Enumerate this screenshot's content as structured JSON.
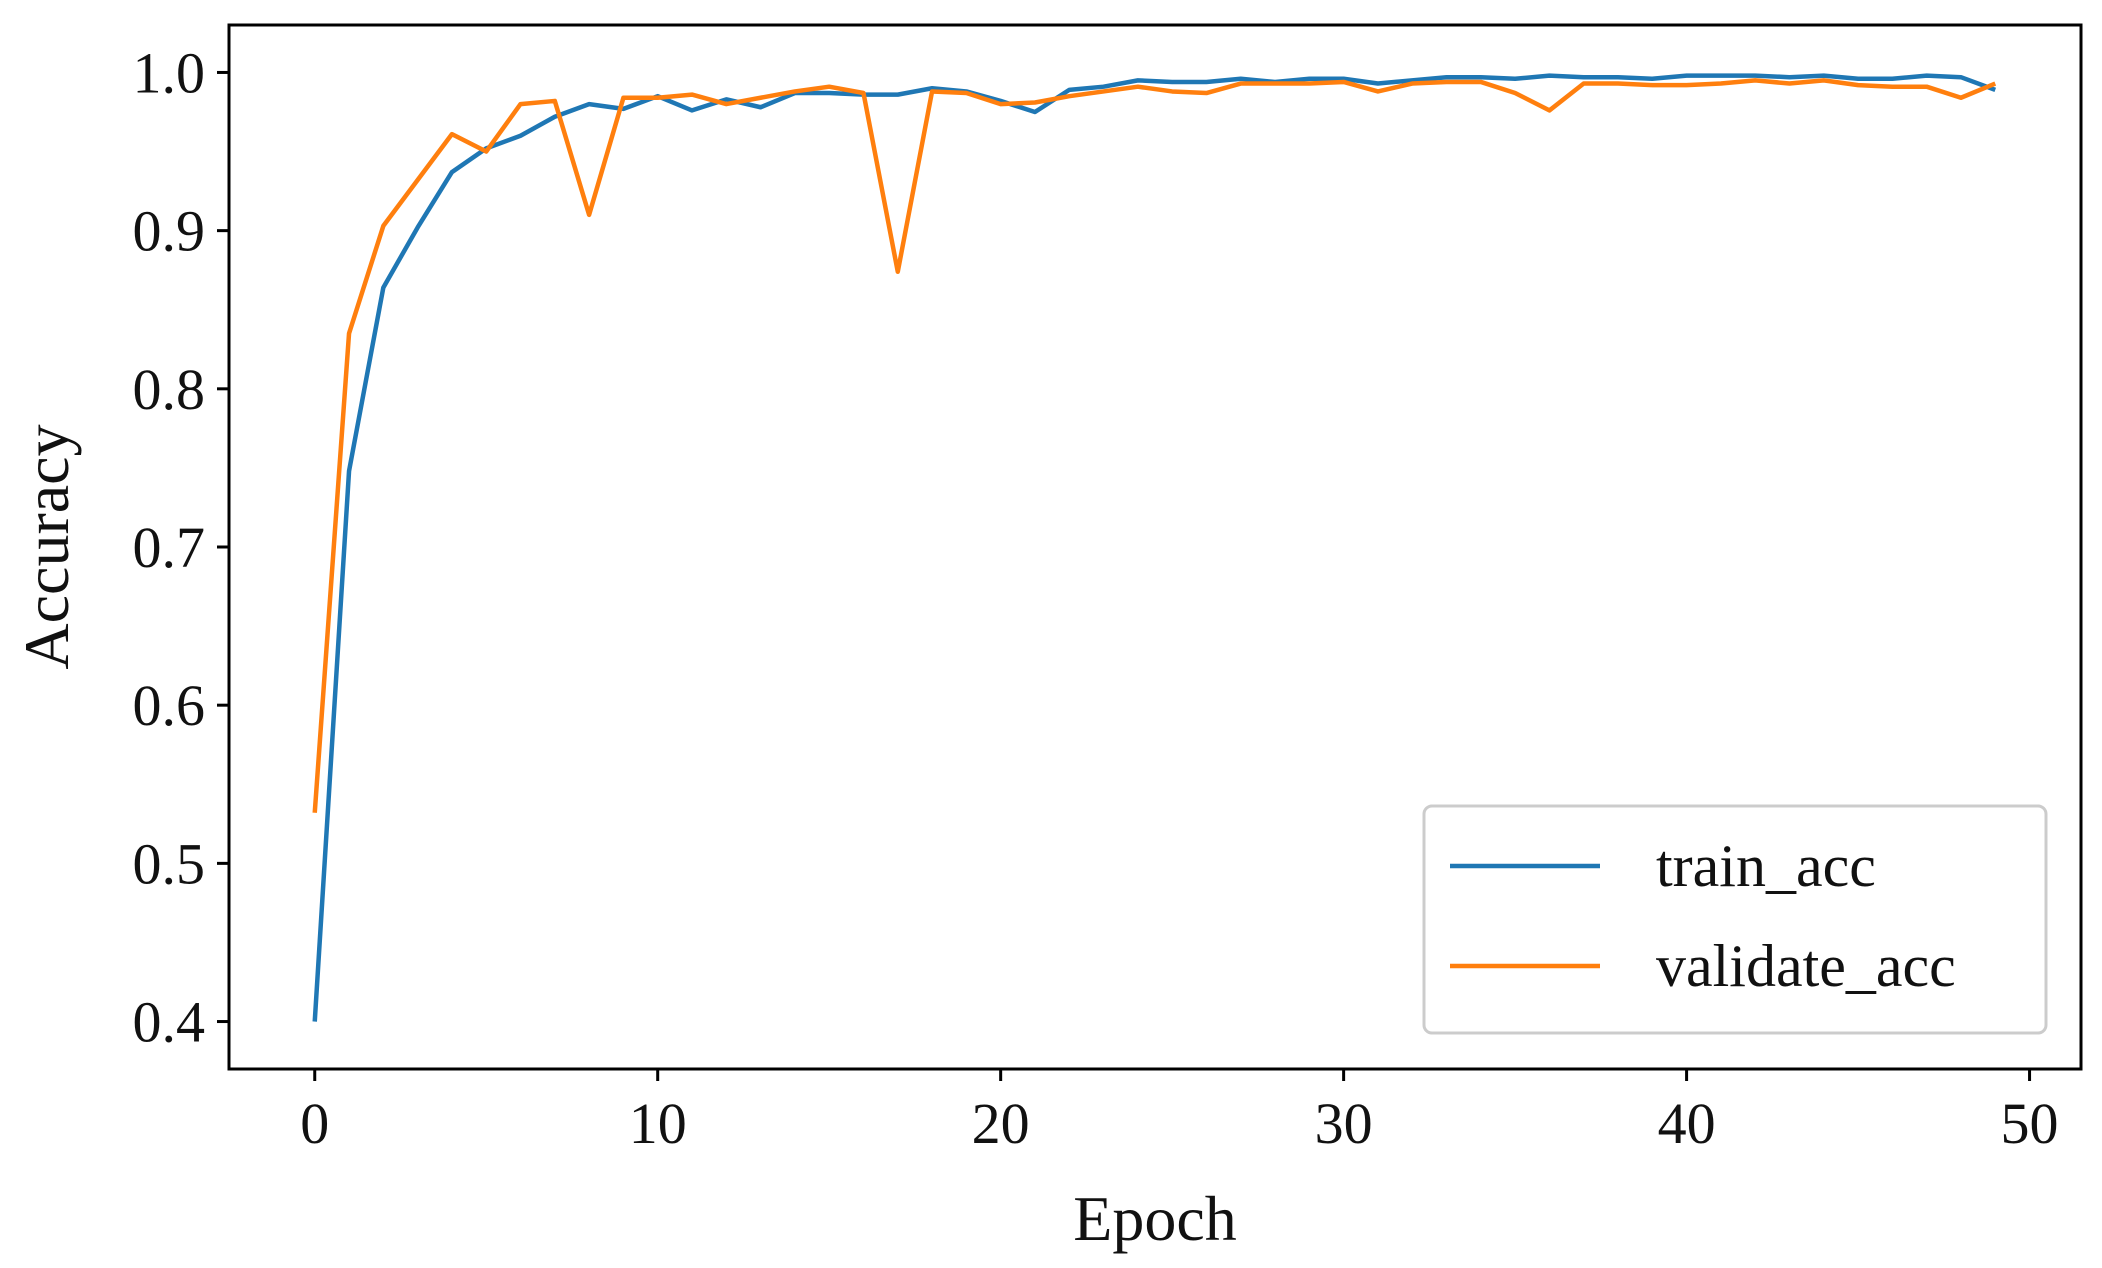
{
  "chart_data": {
    "type": "line",
    "title": "",
    "xlabel": "Epoch",
    "ylabel": "Accuracy",
    "xlim": [
      -2.5,
      51.5
    ],
    "ylim": [
      0.37,
      1.03
    ],
    "xticks": [
      0,
      10,
      20,
      30,
      40,
      50
    ],
    "yticks": [
      0.4,
      0.5,
      0.6,
      0.7,
      0.8,
      0.9,
      1.0
    ],
    "xtick_labels": [
      "0",
      "10",
      "20",
      "30",
      "40",
      "50"
    ],
    "ytick_labels": [
      "0.4",
      "0.5",
      "0.6",
      "0.7",
      "0.8",
      "0.9",
      "1.0"
    ],
    "grid": false,
    "legend_position": "lower-right",
    "x": [
      0,
      1,
      2,
      3,
      4,
      5,
      6,
      7,
      8,
      9,
      10,
      11,
      12,
      13,
      14,
      15,
      16,
      17,
      18,
      19,
      20,
      21,
      22,
      23,
      24,
      25,
      26,
      27,
      28,
      29,
      30,
      31,
      32,
      33,
      34,
      35,
      36,
      37,
      38,
      39,
      40,
      41,
      42,
      43,
      44,
      45,
      46,
      47,
      48,
      49
    ],
    "series": [
      {
        "name": "train_acc",
        "color": "#1f77b4",
        "values": [
          0.4,
          0.748,
          0.864,
          0.902,
          0.937,
          0.952,
          0.96,
          0.972,
          0.98,
          0.977,
          0.985,
          0.976,
          0.983,
          0.978,
          0.987,
          0.987,
          0.986,
          0.986,
          0.99,
          0.988,
          0.982,
          0.975,
          0.989,
          0.991,
          0.995,
          0.994,
          0.994,
          0.996,
          0.994,
          0.996,
          0.996,
          0.993,
          0.995,
          0.997,
          0.997,
          0.996,
          0.998,
          0.997,
          0.997,
          0.996,
          0.998,
          0.998,
          0.998,
          0.997,
          0.998,
          0.996,
          0.996,
          0.998,
          0.997,
          0.989
        ]
      },
      {
        "name": "validate_acc",
        "color": "#ff7f0e",
        "values": [
          0.532,
          0.835,
          0.903,
          0.932,
          0.961,
          0.95,
          0.98,
          0.982,
          0.91,
          0.984,
          0.984,
          0.986,
          0.98,
          0.984,
          0.988,
          0.991,
          0.987,
          0.874,
          0.988,
          0.987,
          0.98,
          0.981,
          0.985,
          0.988,
          0.991,
          0.988,
          0.987,
          0.993,
          0.993,
          0.993,
          0.994,
          0.988,
          0.993,
          0.994,
          0.994,
          0.987,
          0.976,
          0.993,
          0.993,
          0.992,
          0.992,
          0.993,
          0.995,
          0.993,
          0.995,
          0.992,
          0.991,
          0.991,
          0.984,
          0.993
        ]
      }
    ]
  }
}
